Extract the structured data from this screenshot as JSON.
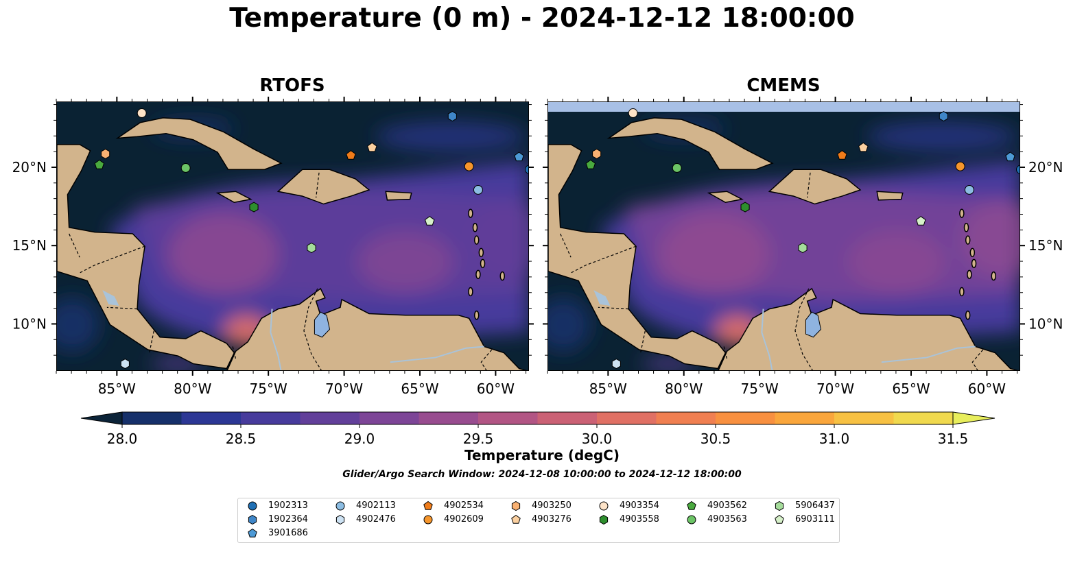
{
  "title": "Temperature (0 m) - 2024-12-12 18:00:00",
  "panels": [
    {
      "title": "RTOFS"
    },
    {
      "title": "CMEMS"
    }
  ],
  "x_ticks": [
    "85°W",
    "80°W",
    "75°W",
    "70°W",
    "65°W",
    "60°W"
  ],
  "y_ticks": [
    "20°N",
    "15°N",
    "10°N"
  ],
  "colorbar": {
    "label": "Temperature (degC)",
    "min": 27.75,
    "max": 31.75,
    "step": 0.25,
    "tick_labels": [
      "28.0",
      "28.5",
      "29.0",
      "29.5",
      "30.0",
      "30.5",
      "31.0",
      "31.5"
    ],
    "colors": [
      "#0b2338",
      "#16306a",
      "#2c3795",
      "#473b9c",
      "#623f9a",
      "#7d4597",
      "#984c8f",
      "#b25584",
      "#cb6175",
      "#e07064",
      "#f07f51",
      "#f89040",
      "#faa63c",
      "#f7c143",
      "#f0d94e",
      "#e8ee5c"
    ]
  },
  "search_window": "Glider/Argo Search Window: 2024-12-08 10:00:00 to 2024-12-12 18:00:00",
  "colors": {
    "land": "#d2b48c",
    "ocean_deep": "#0a2233",
    "lake": "#8fb3e0",
    "river": "#a9c3d9",
    "no_data": "#a8c0e6"
  },
  "legend": [
    {
      "label": "1902313",
      "marker": "circle",
      "color": "#1f6fb4"
    },
    {
      "label": "1902364",
      "marker": "hexagon",
      "color": "#3f86c8"
    },
    {
      "label": "3901686",
      "marker": "pentagon",
      "color": "#4d9ad6"
    },
    {
      "label": "4902113",
      "marker": "circle",
      "color": "#8cbde3"
    },
    {
      "label": "4902476",
      "marker": "hexagon",
      "color": "#cde2f3"
    },
    {
      "label": "4902534",
      "marker": "pentagon",
      "color": "#ef7c1a"
    },
    {
      "label": "4902609",
      "marker": "circle",
      "color": "#f6962c"
    },
    {
      "label": "4903250",
      "marker": "hexagon",
      "color": "#f9b172"
    },
    {
      "label": "4903276",
      "marker": "pentagon",
      "color": "#fbd0a0"
    },
    {
      "label": "4903354",
      "marker": "circle",
      "color": "#fde3c8"
    },
    {
      "label": "4903558",
      "marker": "hexagon",
      "color": "#2e8f2e"
    },
    {
      "label": "4903562",
      "marker": "pentagon",
      "color": "#4aaa3f"
    },
    {
      "label": "4903563",
      "marker": "circle",
      "color": "#6cc466"
    },
    {
      "label": "5906437",
      "marker": "hexagon",
      "color": "#a5dc9b"
    },
    {
      "label": "6903111",
      "marker": "pentagon",
      "color": "#d6f0c9"
    }
  ],
  "markers": [
    {
      "id": "4903354",
      "lon": -83.4,
      "lat": 23.5
    },
    {
      "id": "1902364",
      "lon": -62.9,
      "lat": 23.3
    },
    {
      "id": "4903250",
      "lon": -85.8,
      "lat": 20.9
    },
    {
      "id": "4903562",
      "lon": -86.2,
      "lat": 20.2
    },
    {
      "id": "4903563",
      "lon": -80.5,
      "lat": 20.0
    },
    {
      "id": "4902534",
      "lon": -69.6,
      "lat": 20.8
    },
    {
      "id": "4903276",
      "lon": -68.2,
      "lat": 21.3
    },
    {
      "id": "4902609",
      "lon": -61.8,
      "lat": 20.1
    },
    {
      "id": "3901686",
      "lon": -58.5,
      "lat": 20.7
    },
    {
      "id": "1902313",
      "lon": -57.8,
      "lat": 19.9
    },
    {
      "id": "4902113",
      "lon": -61.2,
      "lat": 18.6
    },
    {
      "id": "4903558",
      "lon": -76.0,
      "lat": 17.5
    },
    {
      "id": "6903111",
      "lon": -64.4,
      "lat": 16.6
    },
    {
      "id": "5906437",
      "lon": -72.2,
      "lat": 14.9
    },
    {
      "id": "4902476",
      "lon": -84.5,
      "lat": 7.5
    }
  ]
}
